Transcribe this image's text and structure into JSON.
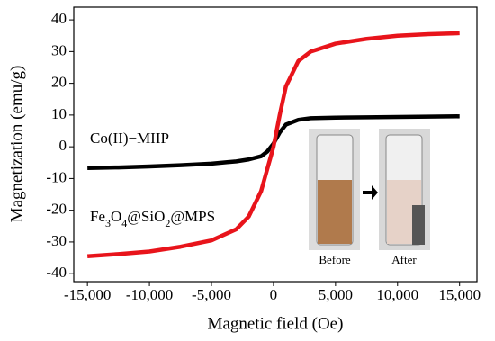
{
  "chart_data": {
    "type": "line",
    "x_label": "Magnetic field (Oe)",
    "y_label": "Magnetization (emu/g)",
    "x": [
      -15000,
      -12500,
      -10000,
      -7500,
      -5000,
      -3000,
      -2000,
      -1000,
      -500,
      0,
      500,
      1000,
      2000,
      3000,
      5000,
      7500,
      10000,
      12500,
      15000
    ],
    "series": [
      {
        "name": "Co(II)−MIIP",
        "color": "#000000",
        "values": [
          -6.7,
          -6.5,
          -6.2,
          -5.8,
          -5.3,
          -4.6,
          -4.0,
          -3.0,
          -1.5,
          1.0,
          4.5,
          7.0,
          8.5,
          9.0,
          9.2,
          9.3,
          9.4,
          9.5,
          9.6
        ]
      },
      {
        "name": "Fe3O4@SiO2@MPS",
        "color": "#e8141b",
        "values": [
          -34.5,
          -33.8,
          -33.0,
          -31.5,
          -29.5,
          -26.0,
          -22.0,
          -14.0,
          -7.0,
          0,
          10.0,
          19.0,
          27.0,
          30.0,
          32.5,
          34.0,
          35.0,
          35.5,
          35.8
        ]
      }
    ],
    "xlim": [
      -16100,
      16400
    ],
    "ylim": [
      -42.5,
      44
    ],
    "xticks": [
      {
        "value": -15000,
        "label": "-15,000"
      },
      {
        "value": -10000,
        "label": "-10,000"
      },
      {
        "value": -5000,
        "label": "-5,000"
      },
      0,
      {
        "value": 5000,
        "label": "5,000"
      },
      {
        "value": 10000,
        "label": "10,000"
      },
      {
        "value": 15000,
        "label": "15,000"
      }
    ],
    "yticks": [
      -40,
      -30,
      -20,
      -10,
      0,
      10,
      20,
      30,
      40
    ],
    "grid": false
  },
  "inset": {
    "before_label": "Before",
    "after_label": "After"
  }
}
